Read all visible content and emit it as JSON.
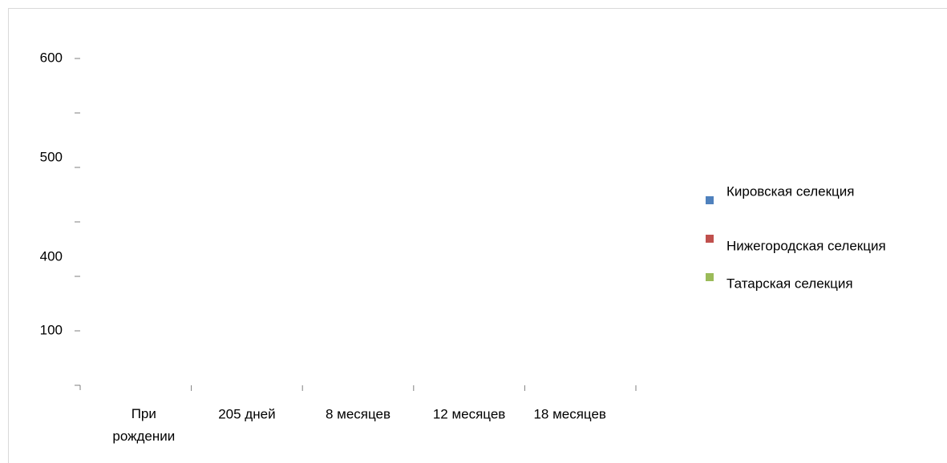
{
  "chart_data": {
    "type": "bar",
    "categories": [
      "При рождении",
      "205 дней",
      "8 месяцев",
      "12 месяцев",
      "18 месяцев"
    ],
    "series": [
      {
        "name": "Кировская селекция",
        "color": "#4f81bd",
        "values": [
          null,
          null,
          null,
          null,
          null
        ]
      },
      {
        "name": "Нижегородская селекция",
        "color": "#c0504d",
        "values": [
          null,
          null,
          null,
          null,
          null
        ]
      },
      {
        "name": "Татарская селекция",
        "color": "#9bbb59",
        "values": [
          null,
          null,
          null,
          null,
          null
        ]
      }
    ],
    "yticks": [
      600,
      null,
      500,
      null,
      400,
      100,
      null
    ],
    "legend": "right"
  }
}
